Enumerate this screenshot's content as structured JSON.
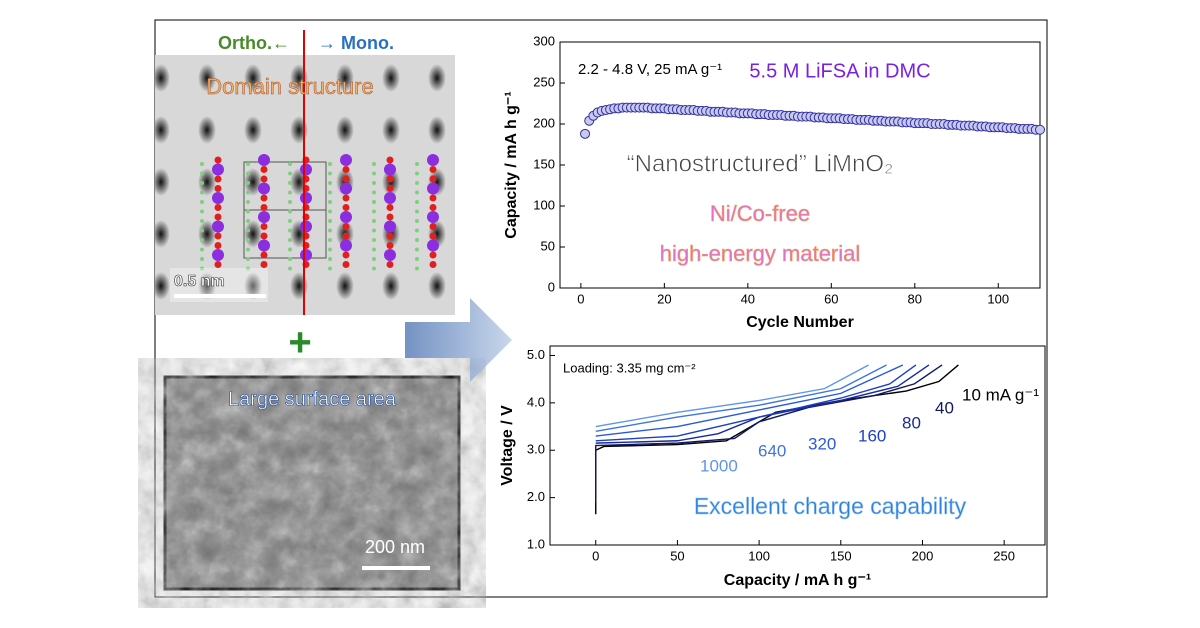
{
  "left_panel": {
    "ortho": "Ortho.←",
    "mono": "→ Mono.",
    "domain": "Domain structure",
    "scale1": "0.5 nm",
    "plus": "+",
    "surface": "Large surface area",
    "scale2": "200 nm"
  },
  "chart_data": [
    {
      "type": "scatter",
      "xlabel": "Cycle Number",
      "ylabel": "Capacity  /  mA h g⁻¹",
      "annotations": [
        "2.2 - 4.8 V, 25 mA g⁻¹",
        "5.5 M LiFSA in DMC",
        "“Nanostructured” LiMnO₂",
        "Ni/Co-free",
        "high-energy material"
      ],
      "xlim": [
        -5,
        110
      ],
      "ylim": [
        0,
        300
      ],
      "xticks": [
        0,
        20,
        40,
        60,
        80,
        100
      ],
      "yticks": [
        0,
        50,
        100,
        150,
        200,
        250,
        300
      ],
      "color": "#c8c8f0",
      "edgecolor": "#3030a0",
      "x": [
        1,
        2,
        3,
        4,
        5,
        6,
        7,
        8,
        9,
        10,
        11,
        12,
        13,
        14,
        15,
        16,
        17,
        18,
        19,
        20,
        21,
        22,
        23,
        24,
        25,
        26,
        27,
        28,
        29,
        30,
        31,
        32,
        33,
        34,
        35,
        36,
        37,
        38,
        39,
        40,
        41,
        42,
        43,
        44,
        45,
        46,
        47,
        48,
        49,
        50,
        51,
        52,
        53,
        54,
        55,
        56,
        57,
        58,
        59,
        60,
        61,
        62,
        63,
        64,
        65,
        66,
        67,
        68,
        69,
        70,
        71,
        72,
        73,
        74,
        75,
        76,
        77,
        78,
        79,
        80,
        81,
        82,
        83,
        84,
        85,
        86,
        87,
        88,
        89,
        90,
        91,
        92,
        93,
        94,
        95,
        96,
        97,
        98,
        99,
        100,
        101,
        102,
        103,
        104,
        105,
        106,
        107,
        108,
        109,
        110
      ],
      "values": [
        188,
        204,
        210,
        214,
        216,
        217,
        218,
        219,
        219,
        220,
        220,
        220,
        220,
        220,
        220,
        220,
        219,
        219,
        219,
        219,
        218,
        218,
        218,
        217,
        217,
        217,
        217,
        216,
        216,
        216,
        215,
        215,
        215,
        215,
        214,
        214,
        214,
        213,
        213,
        213,
        213,
        212,
        212,
        212,
        211,
        211,
        211,
        211,
        210,
        210,
        210,
        209,
        209,
        209,
        209,
        208,
        208,
        208,
        207,
        207,
        207,
        207,
        206,
        206,
        206,
        205,
        205,
        205,
        205,
        204,
        204,
        204,
        203,
        203,
        203,
        203,
        202,
        202,
        202,
        201,
        201,
        201,
        201,
        200,
        200,
        200,
        200,
        199,
        199,
        199,
        198,
        198,
        198,
        198,
        197,
        197,
        197,
        196,
        196,
        196,
        196,
        195,
        195,
        195,
        194,
        194,
        194,
        194,
        193,
        193
      ]
    },
    {
      "type": "line",
      "xlabel": "Capacity  /  mA h g⁻¹",
      "ylabel": "Voltage  /  V",
      "annotations": [
        "Loading: 3.35 mg cm⁻²",
        "Excellent charge capability"
      ],
      "xlim": [
        -28,
        275
      ],
      "ylim": [
        1.0,
        5.2
      ],
      "xticks": [
        0,
        50,
        100,
        150,
        200,
        250
      ],
      "yticks": [
        {
          "value": 1,
          "label": "1.0"
        },
        {
          "value": 2,
          "label": "2.0"
        },
        {
          "value": 3,
          "label": "3.0"
        },
        {
          "value": 4,
          "label": "4.0"
        },
        {
          "value": 5,
          "label": "5.0"
        }
      ],
      "series": [
        {
          "name": "10 mA g⁻¹",
          "color": "#000000",
          "x": [
            0,
            0,
            5,
            50,
            80,
            95,
            110,
            150,
            190,
            210,
            222
          ],
          "values": [
            1.65,
            3.0,
            3.08,
            3.12,
            3.2,
            3.5,
            3.8,
            4.05,
            4.25,
            4.45,
            4.8
          ]
        },
        {
          "name": "40",
          "color": "#101860",
          "x": [
            0,
            0,
            50,
            85,
            100,
            130,
            170,
            195,
            212
          ],
          "values": [
            1.9,
            3.1,
            3.15,
            3.25,
            3.6,
            3.9,
            4.15,
            4.4,
            4.8
          ]
        },
        {
          "name": "80",
          "color": "#1a2a9a",
          "x": [
            0,
            50,
            75,
            100,
            150,
            185,
            204
          ],
          "values": [
            3.15,
            3.2,
            3.35,
            3.7,
            4.05,
            4.35,
            4.8
          ]
        },
        {
          "name": "160",
          "color": "#1c3fc8",
          "x": [
            0,
            50,
            100,
            150,
            180,
            196
          ],
          "values": [
            3.2,
            3.3,
            3.7,
            4.1,
            4.4,
            4.8
          ]
        },
        {
          "name": "320",
          "color": "#2a5ad8",
          "x": [
            0,
            50,
            100,
            150,
            188
          ],
          "values": [
            3.3,
            3.5,
            3.85,
            4.2,
            4.8
          ]
        },
        {
          "name": "640",
          "color": "#3f74e0",
          "x": [
            0,
            50,
            100,
            150,
            178
          ],
          "values": [
            3.4,
            3.7,
            3.95,
            4.3,
            4.8
          ]
        },
        {
          "name": "1000",
          "color": "#5f95ea",
          "x": [
            0,
            50,
            100,
            140,
            167
          ],
          "values": [
            3.5,
            3.8,
            4.05,
            4.3,
            4.8
          ]
        }
      ]
    }
  ]
}
